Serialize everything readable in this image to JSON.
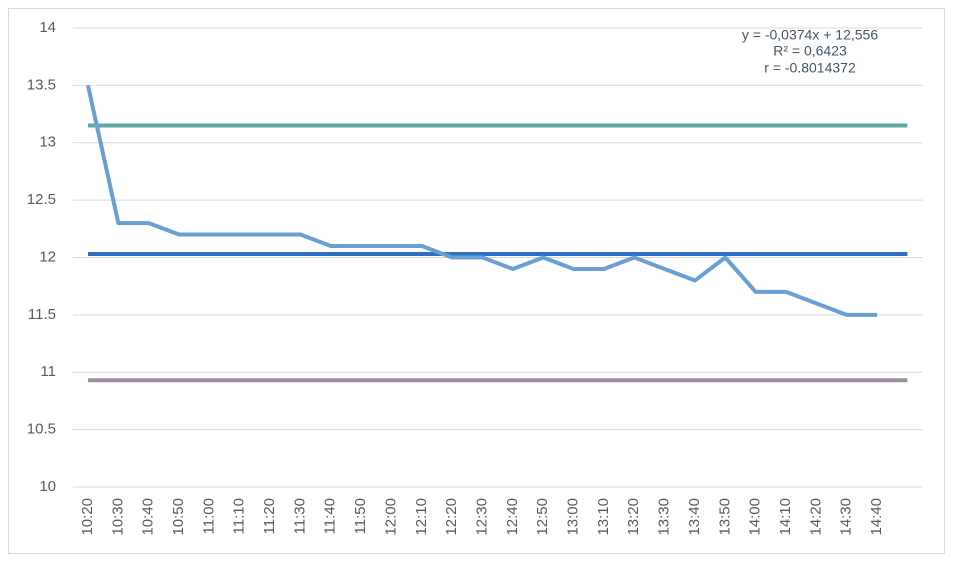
{
  "chart_data": {
    "type": "line",
    "categories": [
      "10:20",
      "10:30",
      "10:40",
      "10:50",
      "11:00",
      "11:10",
      "11:20",
      "11:30",
      "11:40",
      "11:50",
      "12:00",
      "12:10",
      "12:20",
      "12:30",
      "12:40",
      "12:50",
      "13:00",
      "13:10",
      "13:20",
      "13:30",
      "13:40",
      "13:50",
      "14:00",
      "14:10",
      "14:20",
      "14:30",
      "14:40",
      null
    ],
    "series": [
      {
        "color": "#5fa8a3",
        "values": [
          13.15,
          13.15,
          13.15,
          13.15,
          13.15,
          13.15,
          13.15,
          13.15,
          13.15,
          13.15,
          13.15,
          13.15,
          13.15,
          13.15,
          13.15,
          13.15,
          13.15,
          13.15,
          13.15,
          13.15,
          13.15,
          13.15,
          13.15,
          13.15,
          13.15,
          13.15,
          13.15,
          13.15
        ]
      },
      {
        "color": "#2e6fc4",
        "values": [
          12.03,
          12.03,
          12.03,
          12.03,
          12.03,
          12.03,
          12.03,
          12.03,
          12.03,
          12.03,
          12.03,
          12.03,
          12.03,
          12.03,
          12.03,
          12.03,
          12.03,
          12.03,
          12.03,
          12.03,
          12.03,
          12.03,
          12.03,
          12.03,
          12.03,
          12.03,
          12.03,
          12.03
        ]
      },
      {
        "color": "#9d8f9f",
        "values": [
          10.93,
          10.93,
          10.93,
          10.93,
          10.93,
          10.93,
          10.93,
          10.93,
          10.93,
          10.93,
          10.93,
          10.93,
          10.93,
          10.93,
          10.93,
          10.93,
          10.93,
          10.93,
          10.93,
          10.93,
          10.93,
          10.93,
          10.93,
          10.93,
          10.93,
          10.93,
          10.93,
          10.93
        ]
      },
      {
        "color": "#6a9fd4",
        "values": [
          13.5,
          12.3,
          12.3,
          12.2,
          12.2,
          12.2,
          12.2,
          12.2,
          12.1,
          12.1,
          12.1,
          12.1,
          12.0,
          12.0,
          11.9,
          12.0,
          11.9,
          11.9,
          12.0,
          11.9,
          11.8,
          12.0,
          11.7,
          11.7,
          11.6,
          11.5,
          11.5,
          null
        ]
      }
    ],
    "annotations": [
      "y = -0,0374x + 12,556",
      "R² = 0,6423",
      "r = -0.8014372"
    ],
    "ylim": [
      10,
      14
    ],
    "yticks": [
      10,
      10.5,
      11,
      11.5,
      12,
      12.5,
      13,
      13.5,
      14
    ],
    "grid": true
  }
}
